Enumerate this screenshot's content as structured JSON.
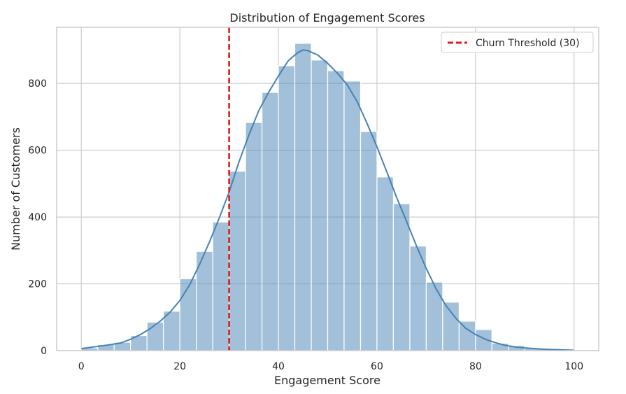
{
  "chart_data": {
    "type": "bar",
    "title": "Distribution of Engagement Scores",
    "xlabel": "Engagement Score",
    "ylabel": "Number of Customers",
    "xlim": [
      -5,
      105
    ],
    "ylim": [
      0,
      968
    ],
    "xticks": [
      0,
      20,
      40,
      60,
      80,
      100
    ],
    "yticks": [
      0,
      200,
      400,
      600,
      800
    ],
    "grid": true,
    "legend_position": "top-right",
    "bin_width": 3.33,
    "bins": [
      {
        "x0": 0.0,
        "x1": 3.33,
        "count": 8
      },
      {
        "x0": 3.33,
        "x1": 6.67,
        "count": 18
      },
      {
        "x0": 6.67,
        "x1": 10.0,
        "count": 25
      },
      {
        "x0": 10.0,
        "x1": 13.33,
        "count": 45
      },
      {
        "x0": 13.33,
        "x1": 16.67,
        "count": 85
      },
      {
        "x0": 16.67,
        "x1": 20.0,
        "count": 118
      },
      {
        "x0": 20.0,
        "x1": 23.33,
        "count": 215
      },
      {
        "x0": 23.33,
        "x1": 26.67,
        "count": 297
      },
      {
        "x0": 26.67,
        "x1": 30.0,
        "count": 385
      },
      {
        "x0": 30.0,
        "x1": 33.33,
        "count": 537
      },
      {
        "x0": 33.33,
        "x1": 36.67,
        "count": 683
      },
      {
        "x0": 36.67,
        "x1": 40.0,
        "count": 773
      },
      {
        "x0": 40.0,
        "x1": 43.33,
        "count": 853
      },
      {
        "x0": 43.33,
        "x1": 46.67,
        "count": 920
      },
      {
        "x0": 46.67,
        "x1": 50.0,
        "count": 870
      },
      {
        "x0": 50.0,
        "x1": 53.33,
        "count": 838
      },
      {
        "x0": 53.33,
        "x1": 56.67,
        "count": 807
      },
      {
        "x0": 56.67,
        "x1": 60.0,
        "count": 656
      },
      {
        "x0": 60.0,
        "x1": 63.33,
        "count": 520
      },
      {
        "x0": 63.33,
        "x1": 66.67,
        "count": 440
      },
      {
        "x0": 66.67,
        "x1": 70.0,
        "count": 313
      },
      {
        "x0": 70.0,
        "x1": 73.33,
        "count": 205
      },
      {
        "x0": 73.33,
        "x1": 76.67,
        "count": 145
      },
      {
        "x0": 76.67,
        "x1": 80.0,
        "count": 88
      },
      {
        "x0": 80.0,
        "x1": 83.33,
        "count": 63
      },
      {
        "x0": 83.33,
        "x1": 86.67,
        "count": 22
      },
      {
        "x0": 86.67,
        "x1": 90.0,
        "count": 15
      },
      {
        "x0": 90.0,
        "x1": 93.33,
        "count": 7
      },
      {
        "x0": 93.33,
        "x1": 96.67,
        "count": 4
      },
      {
        "x0": 96.67,
        "x1": 100.0,
        "count": 2
      }
    ],
    "kde": {
      "x": [
        0,
        2,
        4,
        6,
        8,
        10,
        12,
        14,
        16,
        18,
        20,
        22,
        24,
        26,
        28,
        30,
        32,
        34,
        36,
        38,
        40,
        42,
        44,
        45,
        46,
        48,
        50,
        52,
        54,
        56,
        58,
        60,
        62,
        64,
        66,
        68,
        70,
        72,
        74,
        76,
        78,
        80,
        82,
        84,
        86,
        88,
        90,
        92,
        94,
        96,
        98,
        100
      ],
      "y": [
        6,
        10,
        14,
        18,
        23,
        34,
        48,
        66,
        88,
        115,
        150,
        197,
        258,
        325,
        397,
        475,
        565,
        645,
        718,
        773,
        822,
        868,
        893,
        900,
        898,
        885,
        860,
        830,
        795,
        745,
        680,
        610,
        535,
        458,
        387,
        314,
        246,
        185,
        135,
        97,
        67,
        48,
        34,
        24,
        16,
        11,
        8,
        6,
        4,
        3,
        2,
        1
      ]
    },
    "threshold": {
      "x": 30,
      "color": "#e41a1c"
    },
    "colors": {
      "bar_fill": "#4682b4",
      "bar_opacity": 0.5,
      "kde_line": "#4682b4",
      "grid": "#cccccc",
      "axes": "#cccccc"
    },
    "legend": {
      "entries": [
        {
          "label": "Churn Threshold (30)",
          "color": "#e41a1c",
          "style": "dashed"
        }
      ]
    }
  }
}
